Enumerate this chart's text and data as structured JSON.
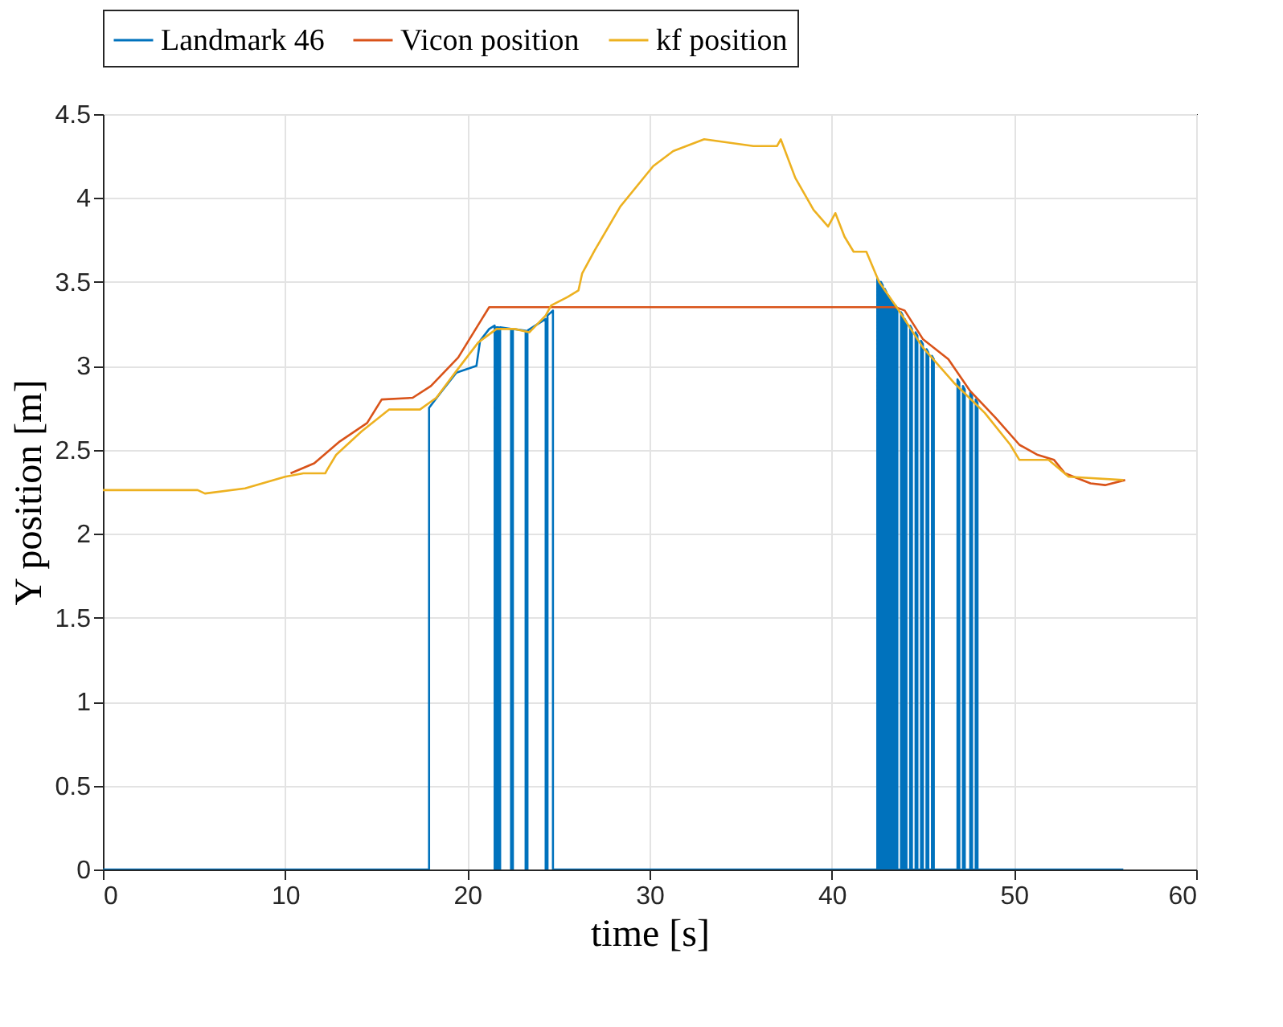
{
  "chart_data": {
    "type": "line",
    "xlabel": "time [s]",
    "ylabel": "Y position [m]",
    "xlim": [
      0,
      60
    ],
    "xticks": [
      0,
      10,
      20,
      30,
      40,
      50,
      60
    ],
    "ylim": [
      0,
      4.5
    ],
    "yticks": [
      0,
      0.5,
      1,
      1.5,
      2,
      2.5,
      3,
      3.5,
      4,
      4.5
    ],
    "grid": true,
    "legend": "top",
    "line_style": "solid",
    "marker": "none",
    "series": [
      {
        "name": "Landmark 46",
        "color": "#0072bd",
        "x": [
          0,
          17.9,
          17.9,
          18.6,
          19.4,
          20.5,
          20.7,
          21.2,
          21.5,
          21.5,
          21.6,
          21.6,
          21.7,
          21.7,
          21.8,
          21.8,
          22.4,
          22.4,
          22.5,
          22.5,
          23.2,
          23.2,
          23.3,
          23.3,
          24.3,
          24.3,
          24.4,
          24.4,
          24.7,
          24.7,
          42.5,
          42.5,
          42.6,
          42.6,
          42.7,
          42.7,
          42.8,
          42.8,
          42.9,
          42.9,
          43.0,
          43.0,
          43.1,
          43.1,
          43.2,
          43.2,
          43.3,
          43.3,
          43.4,
          43.4,
          43.5,
          43.5,
          43.6,
          43.6,
          43.8,
          43.8,
          43.9,
          43.9,
          44.0,
          44.0,
          44.1,
          44.1,
          44.3,
          44.3,
          44.4,
          44.4,
          44.6,
          44.6,
          44.7,
          44.7,
          44.9,
          44.9,
          45.0,
          45.0,
          45.2,
          45.2,
          45.3,
          45.3,
          45.5,
          45.5,
          45.6,
          45.6,
          46.9,
          46.9,
          47.0,
          47.0,
          47.2,
          47.2,
          47.3,
          47.3,
          47.6,
          47.6,
          47.7,
          47.7,
          47.9,
          47.9,
          48.0,
          48.0,
          56
        ],
        "values": [
          0,
          0,
          2.75,
          2.85,
          2.96,
          3.0,
          3.15,
          3.22,
          3.24,
          0,
          0,
          3.23,
          3.23,
          0,
          0,
          3.23,
          3.22,
          0,
          0,
          3.22,
          3.21,
          0,
          0,
          3.21,
          3.28,
          0,
          0,
          3.3,
          3.33,
          0,
          0,
          3.52,
          3.5,
          0,
          0,
          3.5,
          3.48,
          0,
          0,
          3.46,
          3.44,
          0,
          0,
          3.42,
          3.4,
          0,
          0,
          3.38,
          3.36,
          0,
          0,
          3.36,
          3.34,
          0,
          0,
          3.32,
          3.3,
          0,
          0,
          3.28,
          3.26,
          0,
          0,
          3.24,
          3.22,
          0,
          0,
          3.2,
          3.18,
          0,
          0,
          3.15,
          3.13,
          0,
          0,
          3.1,
          3.08,
          0,
          0,
          3.06,
          3.04,
          0,
          0,
          2.92,
          2.9,
          0,
          0,
          2.88,
          2.86,
          0,
          0,
          2.84,
          2.82,
          0,
          0,
          2.8,
          2.78,
          0,
          0
        ]
      },
      {
        "name": "Vicon position",
        "color": "#d95319",
        "x": [
          10.3,
          11.6,
          13,
          14.5,
          15.3,
          17,
          18,
          19.5,
          20.8,
          21.2,
          43.5,
          44,
          45,
          46.4,
          47.6,
          49,
          50.3,
          51.3,
          52.2,
          52.8,
          54.2,
          55,
          56.1
        ],
        "values": [
          2.36,
          2.42,
          2.55,
          2.66,
          2.8,
          2.81,
          2.88,
          3.05,
          3.28,
          3.35,
          3.35,
          3.33,
          3.16,
          3.04,
          2.85,
          2.69,
          2.53,
          2.47,
          2.44,
          2.36,
          2.3,
          2.29,
          2.32
        ]
      },
      {
        "name": "kf position",
        "color": "#edb120",
        "x": [
          0,
          5.2,
          5.6,
          7.8,
          10,
          11,
          12.2,
          12.3,
          12.8,
          14.2,
          15.7,
          17.4,
          18.3,
          19.4,
          20.6,
          21.6,
          22.6,
          23.4,
          24.3,
          24.6,
          25.5,
          26.1,
          26.3,
          27,
          28.4,
          30.2,
          31.3,
          33,
          35.7,
          37,
          37.2,
          38,
          39,
          39.8,
          40.2,
          40.7,
          41.2,
          41.9,
          42.6,
          43.5,
          45,
          46.7,
          48.4,
          49.8,
          50.3,
          51.9,
          53,
          56
        ],
        "values": [
          2.26,
          2.26,
          2.24,
          2.27,
          2.34,
          2.36,
          2.36,
          2.38,
          2.47,
          2.61,
          2.74,
          2.74,
          2.81,
          2.97,
          3.14,
          3.22,
          3.22,
          3.2,
          3.3,
          3.36,
          3.41,
          3.45,
          3.55,
          3.69,
          3.95,
          4.19,
          4.28,
          4.35,
          4.31,
          4.31,
          4.35,
          4.12,
          3.93,
          3.83,
          3.91,
          3.77,
          3.68,
          3.68,
          3.5,
          3.36,
          3.11,
          2.9,
          2.72,
          2.53,
          2.44,
          2.44,
          2.34,
          2.32
        ]
      }
    ]
  }
}
